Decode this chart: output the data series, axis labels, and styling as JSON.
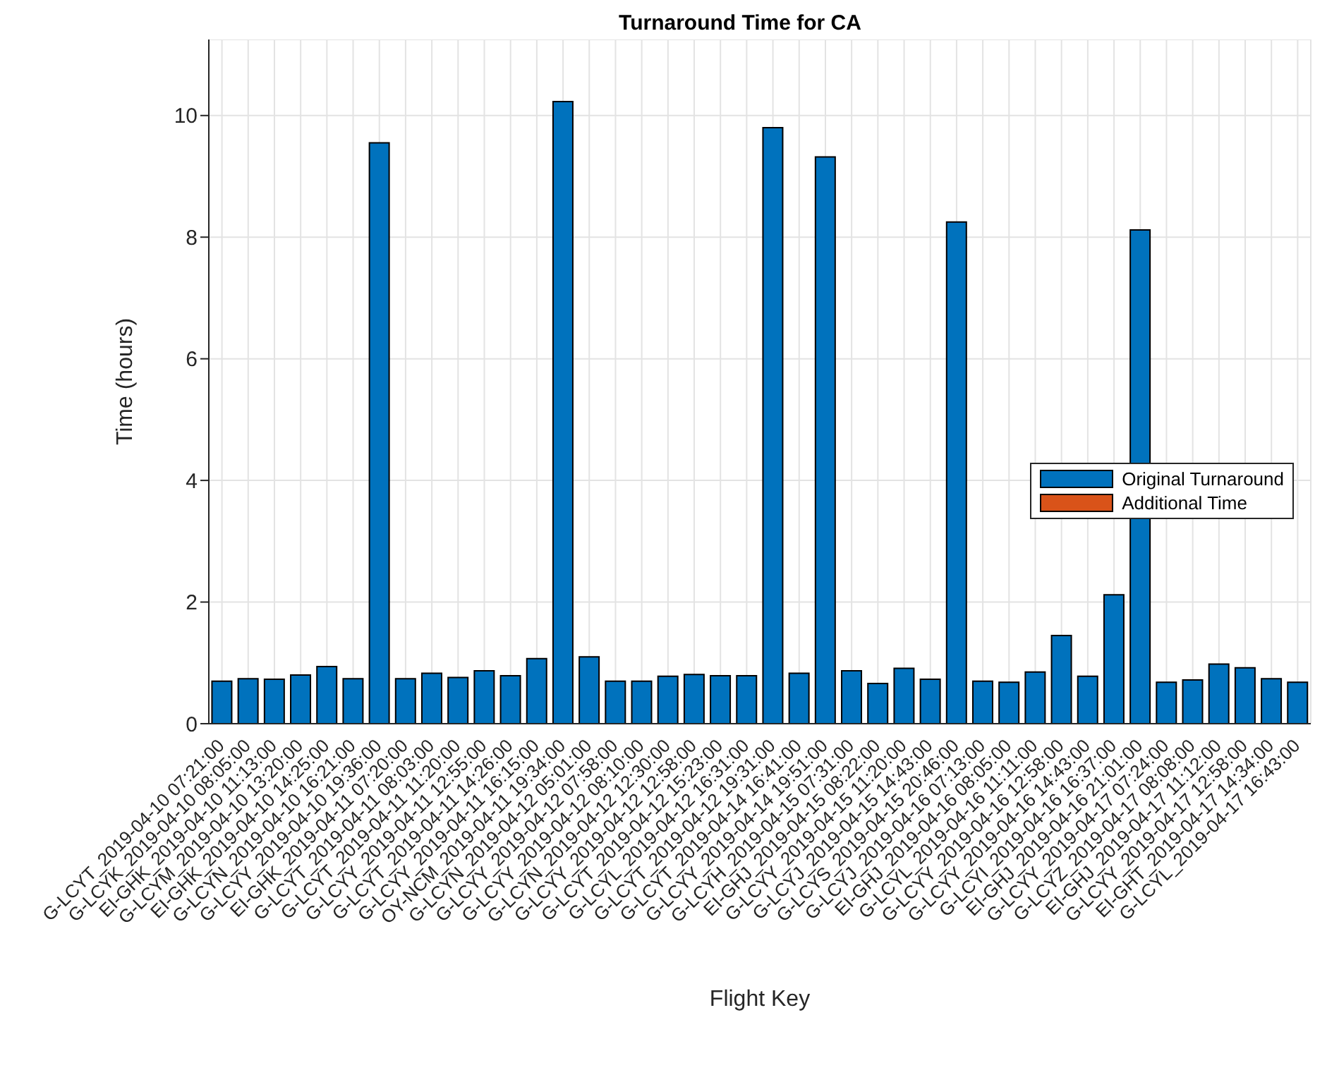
{
  "chart_data": {
    "type": "bar",
    "title": "Turnaround Time for CA",
    "xlabel": "Flight Key",
    "ylabel": "Time (hours)",
    "categories": [
      "G-LCYT_2019-04-10 07:21:00",
      "G-LCYK_2019-04-10 08:05:00",
      "EI-GHK_2019-04-10 11:13:00",
      "G-LCYM_2019-04-10 13:20:00",
      "EI-GHK_2019-04-10 14:25:00",
      "G-LCYN_2019-04-10 16:21:00",
      "G-LCYY_2019-04-10 19:36:00",
      "EI-GHK_2019-04-11 07:20:00",
      "G-LCYT_2019-04-11 08:03:00",
      "G-LCYT_2019-04-11 11:20:00",
      "G-LCYY_2019-04-11 12:55:00",
      "G-LCYT_2019-04-11 14:26:00",
      "G-LCYY_2019-04-11 16:15:00",
      "OY-NCM_2019-04-11 19:34:00",
      "G-LCYN_2019-04-12 05:01:00",
      "G-LCYY_2019-04-12 07:58:00",
      "G-LCYY_2019-04-12 08:10:00",
      "G-LCYN_2019-04-12 12:30:00",
      "G-LCYY_2019-04-12 12:58:00",
      "G-LCYT_2019-04-12 15:23:00",
      "G-LCYL_2019-04-12 16:31:00",
      "G-LCYT_2019-04-12 19:31:00",
      "G-LCYT_2019-04-14 16:41:00",
      "G-LCYY_2019-04-14 19:51:00",
      "G-LCYH_2019-04-15 07:31:00",
      "EI-GHJ_2019-04-15 08:22:00",
      "G-LCYY_2019-04-15 11:20:00",
      "G-LCYJ_2019-04-15 14:43:00",
      "G-LCYS_2019-04-15 20:46:00",
      "G-LCYJ_2019-04-16 07:13:00",
      "EI-GHJ_2019-04-16 08:05:00",
      "G-LCYL_2019-04-16 11:11:00",
      "G-LCYY_2019-04-16 12:58:00",
      "G-LCYY_2019-04-16 14:43:00",
      "G-LCYI_2019-04-16 16:37:00",
      "EI-GHJ_2019-04-16 21:01:00",
      "G-LCYY_2019-04-17 07:24:00",
      "G-LCYZ_2019-04-17 08:08:00",
      "EI-GHJ_2019-04-17 11:12:00",
      "G-LCYY_2019-04-17 12:58:00",
      "EI-GHT_2019-04-17 14:34:00",
      "G-LCYL_2019-04-17 16:43:00"
    ],
    "series": [
      {
        "name": "Original Turnaround",
        "color": "#0072bd",
        "values": [
          0.7,
          0.74,
          0.73,
          0.8,
          0.94,
          0.74,
          9.55,
          0.74,
          0.83,
          0.76,
          0.87,
          0.79,
          1.07,
          10.23,
          1.1,
          0.7,
          0.7,
          0.78,
          0.81,
          0.79,
          0.79,
          9.8,
          0.83,
          9.32,
          0.87,
          0.66,
          0.91,
          0.73,
          8.25,
          0.7,
          0.68,
          0.85,
          1.45,
          0.78,
          2.12,
          8.12,
          0.68,
          0.72,
          0.98,
          0.92,
          0.74,
          0.68
        ]
      },
      {
        "name": "Additional Time",
        "color": "#d95319",
        "values": [
          0,
          0,
          0,
          0,
          0,
          0,
          0,
          0,
          0,
          0,
          0,
          0,
          0,
          0,
          0,
          0,
          0,
          0,
          0,
          0,
          0,
          0,
          0,
          0,
          0,
          0,
          0,
          0,
          0,
          0,
          0,
          0,
          0,
          0,
          0,
          0,
          0,
          0,
          0,
          0,
          0,
          0
        ]
      }
    ],
    "stacked": true,
    "ylim": [
      0,
      11.25
    ],
    "yticks": [
      0,
      2,
      4,
      6,
      8,
      10
    ],
    "grid": true,
    "legend": "right"
  }
}
